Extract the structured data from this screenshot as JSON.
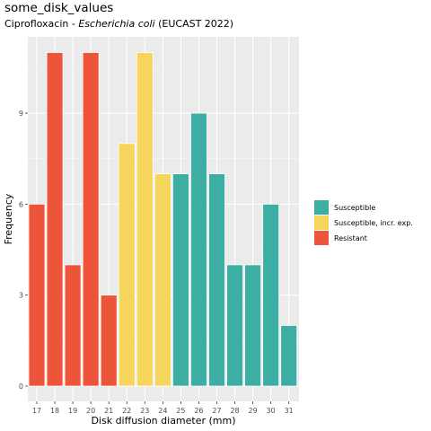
{
  "chart_data": {
    "type": "bar",
    "title": "some_disk_values",
    "subtitle": {
      "prefix": "Ciprofloxacin - ",
      "organism": "Escherichia coli",
      "suffix": " (EUCAST 2022)"
    },
    "xlabel": "Disk diffusion diameter (mm)",
    "ylabel": "Frequency",
    "categories": [
      "17",
      "18",
      "19",
      "20",
      "21",
      "22",
      "23",
      "24",
      "25",
      "26",
      "27",
      "28",
      "29",
      "30",
      "31"
    ],
    "values": [
      6,
      11,
      4,
      11,
      3,
      8,
      11,
      7,
      7,
      9,
      7,
      4,
      4,
      6,
      2
    ],
    "interpretation": [
      "Resistant",
      "Resistant",
      "Resistant",
      "Resistant",
      "Resistant",
      "Susceptible, incr. exp.",
      "Susceptible, incr. exp.",
      "Susceptible, incr. exp.",
      "Susceptible",
      "Susceptible",
      "Susceptible",
      "Susceptible",
      "Susceptible",
      "Susceptible",
      "Susceptible"
    ],
    "y_ticks": [
      0,
      3,
      6,
      9
    ],
    "ylim": [
      0,
      11.55
    ],
    "grid": true,
    "legend": {
      "placement": "right",
      "entries": [
        {
          "label": "Susceptible",
          "color": "#3CAEA3"
        },
        {
          "label": "Susceptible, incr. exp.",
          "color": "#F6D55C"
        },
        {
          "label": "Resistant",
          "color": "#ED553B"
        }
      ]
    },
    "colors": {
      "panel_background": "#EBEBEB",
      "grid_major": "#FFFFFF",
      "grid_minor": "#F5F5F5"
    }
  }
}
